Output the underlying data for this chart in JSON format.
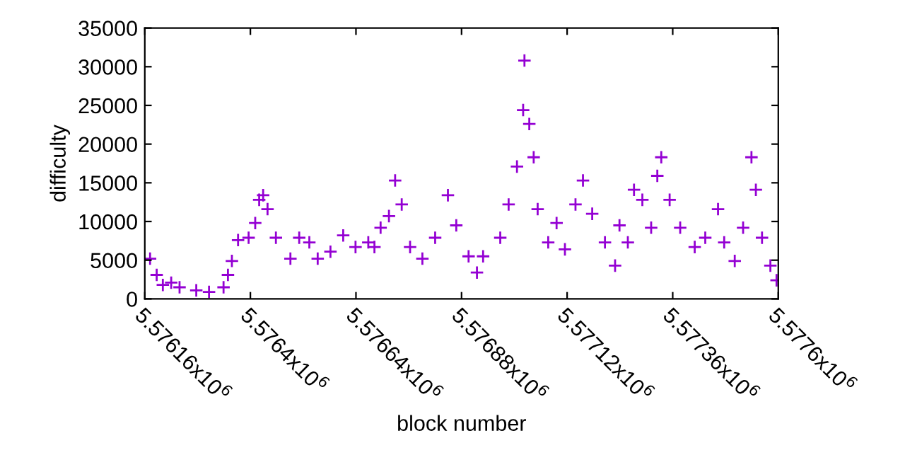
{
  "chart_data": {
    "type": "scatter",
    "xlabel": "block number",
    "ylabel": "difficulty",
    "marker": "cross",
    "grid": false,
    "xlim": [
      5576160,
      5577600
    ],
    "xticks": [
      {
        "value": 5576160,
        "label": "5.57616x10$^{6}$"
      },
      {
        "value": 5576400,
        "label": "5.5764x10$^{6}$"
      },
      {
        "value": 5576640,
        "label": "5.57664x10$^{6}$"
      },
      {
        "value": 5576880,
        "label": "5.57688x10$^{6}$"
      },
      {
        "value": 5577120,
        "label": "5.57712x10$^{6}$"
      },
      {
        "value": 5577360,
        "label": "5.57736x10$^{6}$"
      },
      {
        "value": 5577600,
        "label": "5.5776x10$^{6}$"
      }
    ],
    "ylim": [
      0,
      35000
    ],
    "yticks": [
      0,
      5000,
      10000,
      15000,
      20000,
      25000,
      30000,
      35000
    ],
    "series": [
      {
        "color": "#9400d3",
        "x": [
          5576172,
          5576187,
          5576201,
          5576220,
          5576239,
          5576277,
          5576306,
          5576339,
          5576349,
          5576358,
          5576372,
          5576396,
          5576411,
          5576420,
          5576429,
          5576439,
          5576458,
          5576491,
          5576511,
          5576534,
          5576553,
          5576582,
          5576611,
          5576639,
          5576668,
          5576682,
          5576696,
          5576715,
          5576729,
          5576744,
          5576763,
          5576791,
          5576820,
          5576849,
          5576868,
          5576896,
          5576915,
          5576929,
          5576968,
          5576987,
          5577006,
          5577020,
          5577023,
          5577034,
          5577044,
          5577053,
          5577077,
          5577096,
          5577115,
          5577139,
          5577156,
          5577177,
          5577206,
          5577229,
          5577239,
          5577258,
          5577272,
          5577291,
          5577311,
          5577325,
          5577334,
          5577353,
          5577377,
          5577410,
          5577434,
          5577463,
          5577477,
          5577501,
          5577520,
          5577539,
          5577549,
          5577563,
          5577582,
          5577596
        ],
        "values": [
          5200,
          3100,
          1800,
          2100,
          1500,
          1100,
          900,
          1500,
          3100,
          4900,
          7600,
          7900,
          9800,
          12800,
          13400,
          11600,
          7900,
          5200,
          7900,
          7300,
          5200,
          6100,
          8200,
          6700,
          7300,
          6700,
          9200,
          10700,
          15300,
          12200,
          6700,
          5200,
          7900,
          13400,
          9500,
          5500,
          3400,
          5500,
          7900,
          12200,
          17100,
          24400,
          30800,
          22600,
          18300,
          11600,
          7300,
          9800,
          6400,
          12200,
          15300,
          11000,
          7300,
          4300,
          9500,
          7300,
          14100,
          12800,
          9200,
          15900,
          18300,
          12800,
          9200,
          6700,
          7900,
          11600,
          7300,
          4900,
          9200,
          18300,
          14100,
          7900,
          4300,
          2400
        ]
      }
    ]
  }
}
